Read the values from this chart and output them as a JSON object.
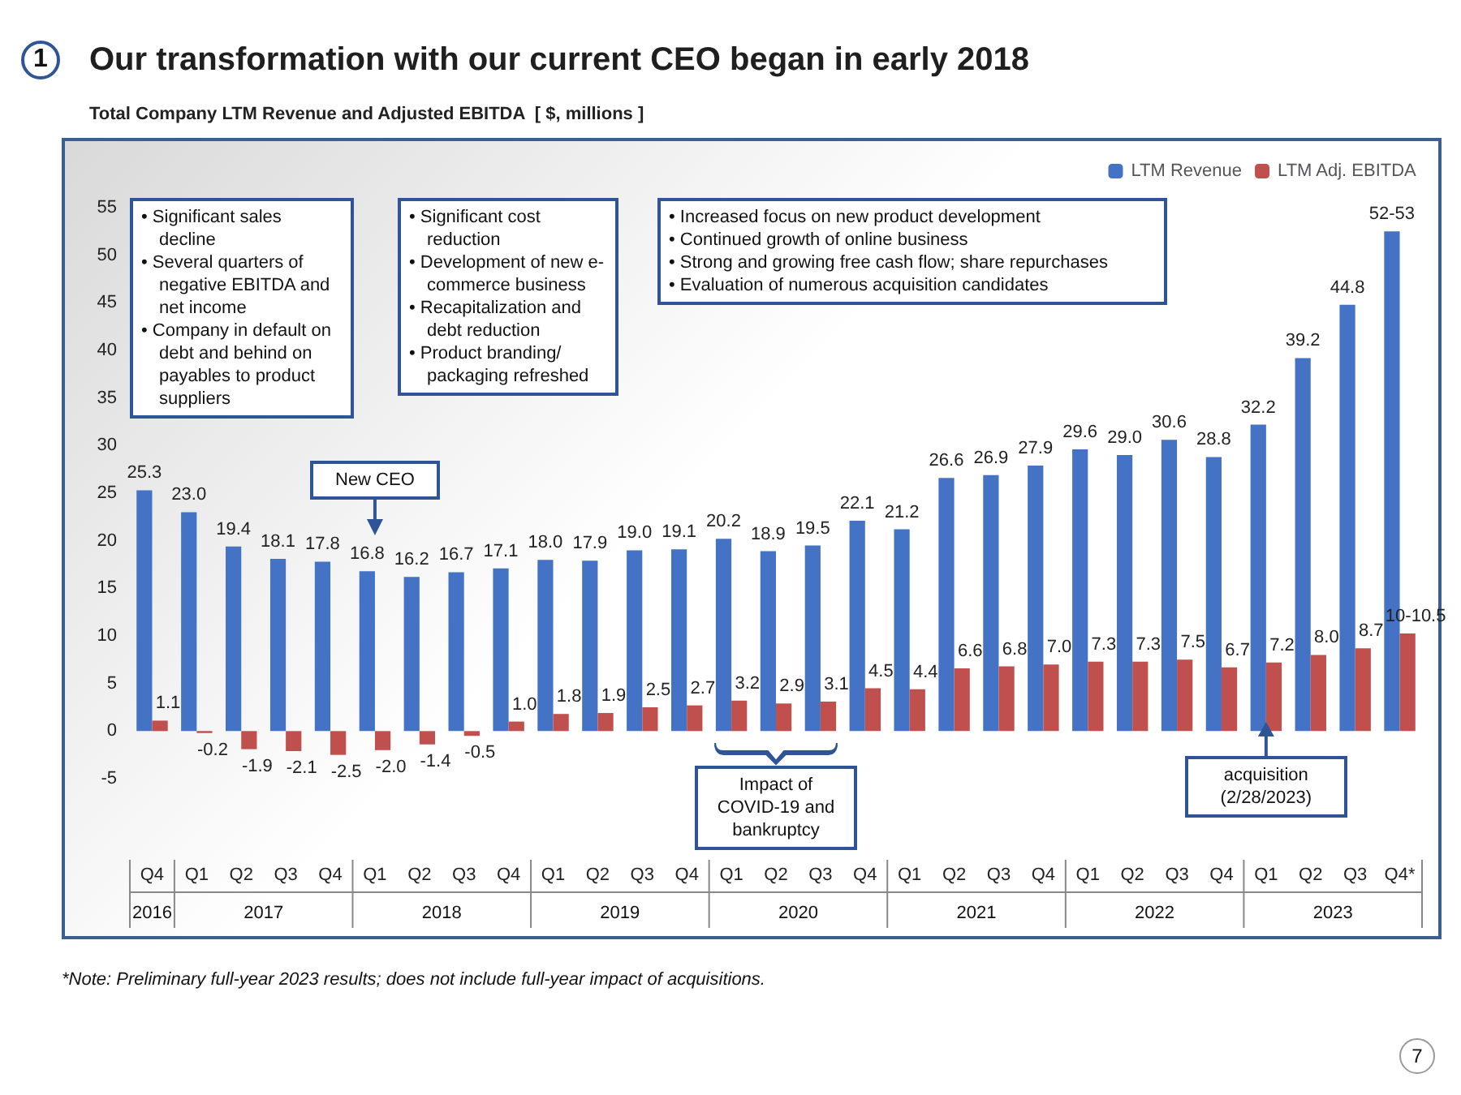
{
  "chart_data": {
    "type": "bar",
    "title": "Our transformation with our current CEO began in early 2018",
    "subtitle": "Total Company LTM Revenue and Adjusted EBITDA  [ $, millions ]",
    "categories": [
      "Q4",
      "Q1",
      "Q2",
      "Q3",
      "Q4",
      "Q1",
      "Q2",
      "Q3",
      "Q4",
      "Q1",
      "Q2",
      "Q3",
      "Q4",
      "Q1",
      "Q2",
      "Q3",
      "Q4",
      "Q1",
      "Q2",
      "Q3",
      "Q4",
      "Q1",
      "Q2",
      "Q3",
      "Q4",
      "Q1",
      "Q2",
      "Q3",
      "Q4*"
    ],
    "series": [
      {
        "name": "LTM Revenue",
        "color": "#4472c4",
        "values": [
          25.3,
          23.0,
          19.4,
          18.1,
          17.8,
          16.8,
          16.2,
          16.7,
          17.1,
          18.0,
          17.9,
          19.0,
          19.1,
          20.2,
          18.9,
          19.5,
          22.1,
          21.2,
          26.6,
          26.9,
          27.9,
          29.6,
          29.0,
          30.6,
          28.8,
          32.2,
          39.2,
          44.8,
          52.5
        ],
        "value_labels": [
          "25.3",
          "23.0",
          "19.4",
          "18.1",
          "17.8",
          "16.8",
          "16.2",
          "16.7",
          "17.1",
          "18.0",
          "17.9",
          "19.0",
          "19.1",
          "20.2",
          "18.9",
          "19.5",
          "22.1",
          "21.2",
          "26.6",
          "26.9",
          "27.9",
          "29.6",
          "29.0",
          "30.6",
          "28.8",
          "32.2",
          "39.2",
          "44.8",
          "52-53"
        ]
      },
      {
        "name": "LTM Adj. EBITDA",
        "color": "#c0504d",
        "values": [
          1.1,
          -0.2,
          -1.9,
          -2.1,
          -2.5,
          -2.0,
          -1.4,
          -0.5,
          1.0,
          1.8,
          1.9,
          2.5,
          2.7,
          3.2,
          2.9,
          3.1,
          4.5,
          4.4,
          6.6,
          6.8,
          7.0,
          7.3,
          7.3,
          7.5,
          6.7,
          7.2,
          8.0,
          8.7,
          10.25
        ],
        "value_labels": [
          "1.1",
          "-0.2",
          "-1.9",
          "-2.1",
          "-2.5",
          "-2.0",
          "-1.4",
          "-0.5",
          "1.0",
          "1.8",
          "1.9",
          "2.5",
          "2.7",
          "3.2",
          "2.9",
          "3.1",
          "4.5",
          "4.4",
          "6.6",
          "6.8",
          "7.0",
          "7.3",
          "7.3",
          "7.5",
          "6.7",
          "7.2",
          "8.0",
          "8.7",
          "10-10.5"
        ]
      }
    ],
    "ylim": [
      -5,
      55
    ],
    "yticks": [
      -5,
      0,
      5,
      10,
      15,
      20,
      25,
      30,
      35,
      40,
      45,
      50,
      55
    ],
    "grid": false,
    "legend": "top right",
    "annotations": [
      "1",
      "• Significant sales decline\n• Several quarters of negative EBITDA  and net income\n• Company in default on debt and behind on payables to product suppliers",
      "• Significant cost reduction\n• Development of new e-commerce business\n• Recapitalization and debt reduction\n• Product branding/ packaging refreshed",
      "• Increased focus on new product development\n• Continued growth of online business\n• Strong and growing free cash flow; share repurchases\n• Evaluation of numerous acquisition candidates",
      "New CEO",
      "Impact of COVID-19 and bankruptcy",
      "acquisition (2/28/2023)",
      "*Note: Preliminary full-year 2023 results; does not include full-year impact of acquisitions.",
      "7",
      "2016",
      "2017",
      "2018",
      "2019",
      "2020",
      "2021",
      "2022",
      "2023"
    ]
  }
}
